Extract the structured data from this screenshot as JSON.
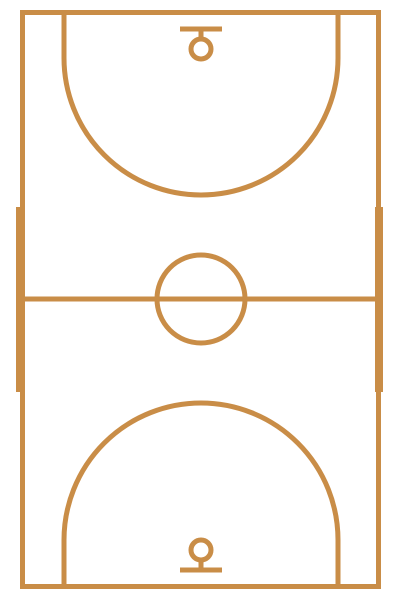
{
  "court": {
    "line_color": "#C98D47",
    "background_color": "#FFFFFF",
    "type": "basketball-half-court-diagram"
  }
}
